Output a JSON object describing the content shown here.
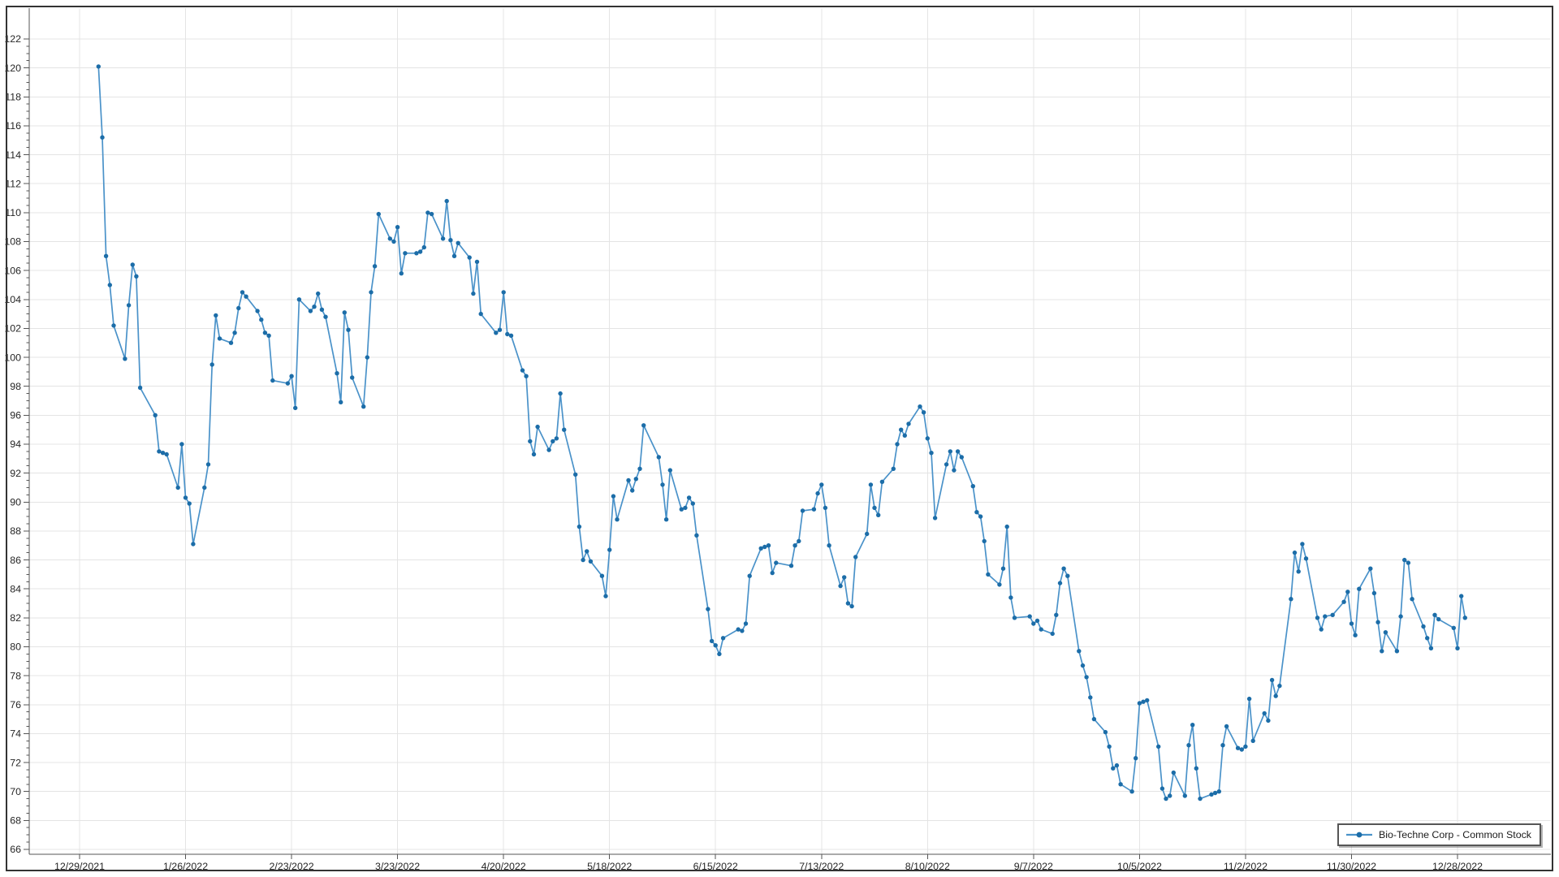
{
  "window": {
    "background_color": "#ffffff",
    "frame_border_color": "#333333"
  },
  "legend": {
    "label": "Bio-Techne Corp - Common Stock",
    "position": "bottom-right",
    "border_color": "#565656"
  },
  "chart_data": {
    "type": "line",
    "title": "",
    "xlabel": "",
    "ylabel": "",
    "grid": true,
    "legend_position": "bottom-right",
    "ylim": [
      66,
      122
    ],
    "y_tick_step": 2,
    "y_ticks": [
      66,
      68,
      70,
      72,
      74,
      76,
      78,
      80,
      82,
      84,
      86,
      88,
      90,
      92,
      94,
      96,
      98,
      100,
      102,
      104,
      106,
      108,
      110,
      112,
      114,
      116,
      118,
      120,
      122
    ],
    "x_tick_labels": [
      "12/29/2021",
      "1/26/2022",
      "2/23/2022",
      "3/23/2022",
      "4/20/2022",
      "5/18/2022",
      "6/15/2022",
      "7/13/2022",
      "8/10/2022",
      "9/7/2022",
      "10/5/2022",
      "11/2/2022",
      "11/30/2022",
      "12/28/2022"
    ],
    "colors": {
      "line": "#4a92c9",
      "marker": "#1c6da8",
      "grid": "#e4e4e4",
      "axis": "#555555",
      "tick_text": "#262626"
    },
    "series": [
      {
        "name": "Bio-Techne Corp - Common Stock",
        "points": [
          [
            "1/3/2022",
            120.1
          ],
          [
            "1/4/2022",
            115.2
          ],
          [
            "1/5/2022",
            107.0
          ],
          [
            "1/6/2022",
            105.0
          ],
          [
            "1/7/2022",
            102.2
          ],
          [
            "1/10/2022",
            99.9
          ],
          [
            "1/11/2022",
            103.6
          ],
          [
            "1/12/2022",
            106.4
          ],
          [
            "1/13/2022",
            105.6
          ],
          [
            "1/14/2022",
            97.9
          ],
          [
            "1/18/2022",
            96.0
          ],
          [
            "1/19/2022",
            93.5
          ],
          [
            "1/20/2022",
            93.4
          ],
          [
            "1/21/2022",
            93.3
          ],
          [
            "1/24/2022",
            91.0
          ],
          [
            "1/25/2022",
            94.0
          ],
          [
            "1/26/2022",
            90.3
          ],
          [
            "1/27/2022",
            89.9
          ],
          [
            "1/28/2022",
            87.1
          ],
          [
            "1/31/2022",
            91.0
          ],
          [
            "2/1/2022",
            92.6
          ],
          [
            "2/2/2022",
            99.5
          ],
          [
            "2/3/2022",
            102.9
          ],
          [
            "2/4/2022",
            101.3
          ],
          [
            "2/7/2022",
            101.0
          ],
          [
            "2/8/2022",
            101.7
          ],
          [
            "2/9/2022",
            103.4
          ],
          [
            "2/10/2022",
            104.5
          ],
          [
            "2/11/2022",
            104.2
          ],
          [
            "2/14/2022",
            103.2
          ],
          [
            "2/15/2022",
            102.6
          ],
          [
            "2/16/2022",
            101.7
          ],
          [
            "2/17/2022",
            101.5
          ],
          [
            "2/18/2022",
            98.4
          ],
          [
            "2/22/2022",
            98.2
          ],
          [
            "2/23/2022",
            98.7
          ],
          [
            "2/24/2022",
            96.5
          ],
          [
            "2/25/2022",
            104.0
          ],
          [
            "2/28/2022",
            103.2
          ],
          [
            "3/1/2022",
            103.5
          ],
          [
            "3/2/2022",
            104.4
          ],
          [
            "3/3/2022",
            103.3
          ],
          [
            "3/4/2022",
            102.8
          ],
          [
            "3/7/2022",
            98.9
          ],
          [
            "3/8/2022",
            96.9
          ],
          [
            "3/9/2022",
            103.1
          ],
          [
            "3/10/2022",
            101.9
          ],
          [
            "3/11/2022",
            98.6
          ],
          [
            "3/14/2022",
            96.6
          ],
          [
            "3/15/2022",
            100.0
          ],
          [
            "3/16/2022",
            104.5
          ],
          [
            "3/17/2022",
            106.3
          ],
          [
            "3/18/2022",
            109.9
          ],
          [
            "3/21/2022",
            108.2
          ],
          [
            "3/22/2022",
            108.0
          ],
          [
            "3/23/2022",
            109.0
          ],
          [
            "3/24/2022",
            105.8
          ],
          [
            "3/25/2022",
            107.2
          ],
          [
            "3/28/2022",
            107.2
          ],
          [
            "3/29/2022",
            107.3
          ],
          [
            "3/30/2022",
            107.6
          ],
          [
            "3/31/2022",
            110.0
          ],
          [
            "4/1/2022",
            109.9
          ],
          [
            "4/4/2022",
            108.2
          ],
          [
            "4/5/2022",
            110.8
          ],
          [
            "4/6/2022",
            108.1
          ],
          [
            "4/7/2022",
            107.0
          ],
          [
            "4/8/2022",
            107.9
          ],
          [
            "4/11/2022",
            106.9
          ],
          [
            "4/12/2022",
            104.4
          ],
          [
            "4/13/2022",
            106.6
          ],
          [
            "4/14/2022",
            103.0
          ],
          [
            "4/18/2022",
            101.7
          ],
          [
            "4/19/2022",
            101.9
          ],
          [
            "4/20/2022",
            104.5
          ],
          [
            "4/21/2022",
            101.6
          ],
          [
            "4/22/2022",
            101.5
          ],
          [
            "4/25/2022",
            99.1
          ],
          [
            "4/26/2022",
            98.7
          ],
          [
            "4/27/2022",
            94.2
          ],
          [
            "4/28/2022",
            93.3
          ],
          [
            "4/29/2022",
            95.2
          ],
          [
            "5/2/2022",
            93.6
          ],
          [
            "5/3/2022",
            94.2
          ],
          [
            "5/4/2022",
            94.4
          ],
          [
            "5/5/2022",
            97.5
          ],
          [
            "5/6/2022",
            95.0
          ],
          [
            "5/9/2022",
            91.9
          ],
          [
            "5/10/2022",
            88.3
          ],
          [
            "5/11/2022",
            86.0
          ],
          [
            "5/12/2022",
            86.6
          ],
          [
            "5/13/2022",
            85.9
          ],
          [
            "5/16/2022",
            84.9
          ],
          [
            "5/17/2022",
            83.5
          ],
          [
            "5/18/2022",
            86.7
          ],
          [
            "5/19/2022",
            90.4
          ],
          [
            "5/20/2022",
            88.8
          ],
          [
            "5/23/2022",
            91.5
          ],
          [
            "5/24/2022",
            90.8
          ],
          [
            "5/25/2022",
            91.6
          ],
          [
            "5/26/2022",
            92.3
          ],
          [
            "5/27/2022",
            95.3
          ],
          [
            "5/31/2022",
            93.1
          ],
          [
            "6/1/2022",
            91.2
          ],
          [
            "6/2/2022",
            88.8
          ],
          [
            "6/3/2022",
            92.2
          ],
          [
            "6/6/2022",
            89.5
          ],
          [
            "6/7/2022",
            89.6
          ],
          [
            "6/8/2022",
            90.3
          ],
          [
            "6/9/2022",
            89.9
          ],
          [
            "6/10/2022",
            87.7
          ],
          [
            "6/13/2022",
            82.6
          ],
          [
            "6/14/2022",
            80.4
          ],
          [
            "6/15/2022",
            80.1
          ],
          [
            "6/16/2022",
            79.5
          ],
          [
            "6/17/2022",
            80.6
          ],
          [
            "6/21/2022",
            81.2
          ],
          [
            "6/22/2022",
            81.1
          ],
          [
            "6/23/2022",
            81.6
          ],
          [
            "6/24/2022",
            84.9
          ],
          [
            "6/27/2022",
            86.8
          ],
          [
            "6/28/2022",
            86.9
          ],
          [
            "6/29/2022",
            87.0
          ],
          [
            "6/30/2022",
            85.1
          ],
          [
            "7/1/2022",
            85.8
          ],
          [
            "7/5/2022",
            85.6
          ],
          [
            "7/6/2022",
            87.0
          ],
          [
            "7/7/2022",
            87.3
          ],
          [
            "7/8/2022",
            89.4
          ],
          [
            "7/11/2022",
            89.5
          ],
          [
            "7/12/2022",
            90.6
          ],
          [
            "7/13/2022",
            91.2
          ],
          [
            "7/14/2022",
            89.6
          ],
          [
            "7/15/2022",
            87.0
          ],
          [
            "7/18/2022",
            84.2
          ],
          [
            "7/19/2022",
            84.8
          ],
          [
            "7/20/2022",
            83.0
          ],
          [
            "7/21/2022",
            82.8
          ],
          [
            "7/22/2022",
            86.2
          ],
          [
            "7/25/2022",
            87.8
          ],
          [
            "7/26/2022",
            91.2
          ],
          [
            "7/27/2022",
            89.6
          ],
          [
            "7/28/2022",
            89.1
          ],
          [
            "7/29/2022",
            91.4
          ],
          [
            "8/1/2022",
            92.3
          ],
          [
            "8/2/2022",
            94.0
          ],
          [
            "8/3/2022",
            95.0
          ],
          [
            "8/4/2022",
            94.6
          ],
          [
            "8/5/2022",
            95.4
          ],
          [
            "8/8/2022",
            96.6
          ],
          [
            "8/9/2022",
            96.2
          ],
          [
            "8/10/2022",
            94.4
          ],
          [
            "8/11/2022",
            93.4
          ],
          [
            "8/12/2022",
            88.9
          ],
          [
            "8/15/2022",
            92.6
          ],
          [
            "8/16/2022",
            93.5
          ],
          [
            "8/17/2022",
            92.2
          ],
          [
            "8/18/2022",
            93.5
          ],
          [
            "8/19/2022",
            93.1
          ],
          [
            "8/22/2022",
            91.1
          ],
          [
            "8/23/2022",
            89.3
          ],
          [
            "8/24/2022",
            89.0
          ],
          [
            "8/25/2022",
            87.3
          ],
          [
            "8/26/2022",
            85.0
          ],
          [
            "8/29/2022",
            84.3
          ],
          [
            "8/30/2022",
            85.4
          ],
          [
            "8/31/2022",
            88.3
          ],
          [
            "9/1/2022",
            83.4
          ],
          [
            "9/2/2022",
            82.0
          ],
          [
            "9/6/2022",
            82.1
          ],
          [
            "9/7/2022",
            81.6
          ],
          [
            "9/8/2022",
            81.8
          ],
          [
            "9/9/2022",
            81.2
          ],
          [
            "9/12/2022",
            80.9
          ],
          [
            "9/13/2022",
            82.2
          ],
          [
            "9/14/2022",
            84.4
          ],
          [
            "9/15/2022",
            85.4
          ],
          [
            "9/16/2022",
            84.9
          ],
          [
            "9/19/2022",
            79.7
          ],
          [
            "9/20/2022",
            78.7
          ],
          [
            "9/21/2022",
            77.9
          ],
          [
            "9/22/2022",
            76.5
          ],
          [
            "9/23/2022",
            75.0
          ],
          [
            "9/26/2022",
            74.1
          ],
          [
            "9/27/2022",
            73.1
          ],
          [
            "9/28/2022",
            71.6
          ],
          [
            "9/29/2022",
            71.8
          ],
          [
            "9/30/2022",
            70.5
          ],
          [
            "10/3/2022",
            70.0
          ],
          [
            "10/4/2022",
            72.3
          ],
          [
            "10/5/2022",
            76.1
          ],
          [
            "10/6/2022",
            76.2
          ],
          [
            "10/7/2022",
            76.3
          ],
          [
            "10/10/2022",
            73.1
          ],
          [
            "10/11/2022",
            70.2
          ],
          [
            "10/12/2022",
            69.5
          ],
          [
            "10/13/2022",
            69.7
          ],
          [
            "10/14/2022",
            71.3
          ],
          [
            "10/17/2022",
            69.7
          ],
          [
            "10/18/2022",
            73.2
          ],
          [
            "10/19/2022",
            74.6
          ],
          [
            "10/20/2022",
            71.6
          ],
          [
            "10/21/2022",
            69.5
          ],
          [
            "10/24/2022",
            69.8
          ],
          [
            "10/25/2022",
            69.9
          ],
          [
            "10/26/2022",
            70.0
          ],
          [
            "10/27/2022",
            73.2
          ],
          [
            "10/28/2022",
            74.5
          ],
          [
            "10/31/2022",
            73.0
          ],
          [
            "11/1/2022",
            72.9
          ],
          [
            "11/2/2022",
            73.1
          ],
          [
            "11/3/2022",
            76.4
          ],
          [
            "11/4/2022",
            73.5
          ],
          [
            "11/7/2022",
            75.4
          ],
          [
            "11/8/2022",
            74.9
          ],
          [
            "11/9/2022",
            77.7
          ],
          [
            "11/10/2022",
            76.6
          ],
          [
            "11/11/2022",
            77.3
          ],
          [
            "11/14/2022",
            83.3
          ],
          [
            "11/15/2022",
            86.5
          ],
          [
            "11/16/2022",
            85.2
          ],
          [
            "11/17/2022",
            87.1
          ],
          [
            "11/18/2022",
            86.1
          ],
          [
            "11/21/2022",
            82.0
          ],
          [
            "11/22/2022",
            81.2
          ],
          [
            "11/23/2022",
            82.1
          ],
          [
            "11/25/2022",
            82.2
          ],
          [
            "11/28/2022",
            83.1
          ],
          [
            "11/29/2022",
            83.8
          ],
          [
            "11/30/2022",
            81.6
          ],
          [
            "12/1/2022",
            80.8
          ],
          [
            "12/2/2022",
            84.0
          ],
          [
            "12/5/2022",
            85.4
          ],
          [
            "12/6/2022",
            83.7
          ],
          [
            "12/7/2022",
            81.7
          ],
          [
            "12/8/2022",
            79.7
          ],
          [
            "12/9/2022",
            81.0
          ],
          [
            "12/12/2022",
            79.7
          ],
          [
            "12/13/2022",
            82.1
          ],
          [
            "12/14/2022",
            86.0
          ],
          [
            "12/15/2022",
            85.8
          ],
          [
            "12/16/2022",
            83.3
          ],
          [
            "12/19/2022",
            81.4
          ],
          [
            "12/20/2022",
            80.6
          ],
          [
            "12/21/2022",
            79.9
          ],
          [
            "12/22/2022",
            82.2
          ],
          [
            "12/23/2022",
            81.9
          ],
          [
            "12/27/2022",
            81.3
          ],
          [
            "12/28/2022",
            79.9
          ],
          [
            "12/29/2022",
            83.5
          ],
          [
            "12/30/2022",
            82.0
          ]
        ]
      }
    ]
  }
}
